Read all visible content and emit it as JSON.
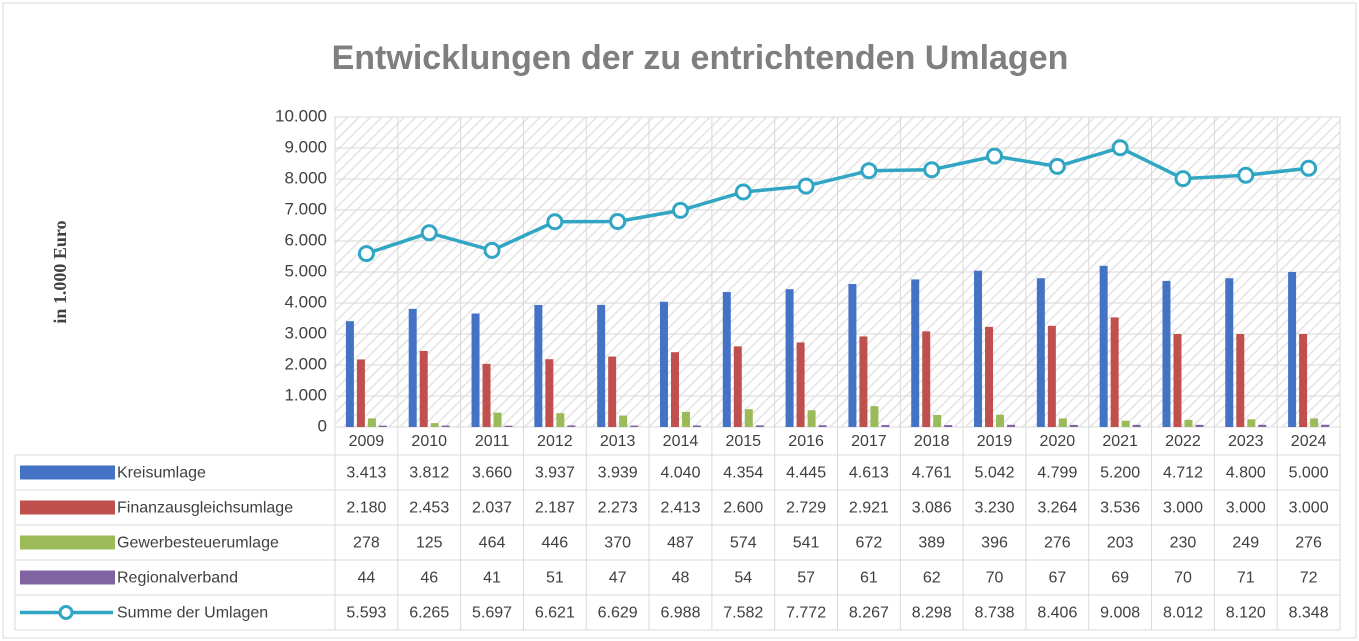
{
  "chart_data": {
    "type": "bar",
    "title": "Entwicklungen der zu entrichtenden Umlagen",
    "y_label": "in 1.000 Euro",
    "categories": [
      "2009",
      "2010",
      "2011",
      "2012",
      "2013",
      "2014",
      "2015",
      "2016",
      "2017",
      "2018",
      "2019",
      "2020",
      "2021",
      "2022",
      "2023",
      "2024"
    ],
    "ylim": [
      0,
      10000
    ],
    "yticks": [
      0,
      {
        "value": 1000,
        "label": "1.000"
      },
      {
        "value": 2000,
        "label": "2.000"
      },
      {
        "value": 3000,
        "label": "3.000"
      },
      {
        "value": 4000,
        "label": "4.000"
      },
      {
        "value": 5000,
        "label": "5.000"
      },
      {
        "value": 6000,
        "label": "6.000"
      },
      {
        "value": 7000,
        "label": "7.000"
      },
      {
        "value": 8000,
        "label": "8.000"
      },
      {
        "value": 9000,
        "label": "9.000"
      },
      {
        "value": 10000,
        "label": "10.000"
      }
    ],
    "grid": true,
    "series": [
      {
        "name": "Kreisumlage",
        "color": "#4472c4",
        "type": "bar",
        "values": [
          3413,
          3812,
          3660,
          3937,
          3939,
          4040,
          4354,
          4445,
          4613,
          4761,
          5042,
          4799,
          5200,
          4712,
          4800,
          5000
        ],
        "value_labels": [
          "3.413",
          "3.812",
          "3.660",
          "3.937",
          "3.939",
          "4.040",
          "4.354",
          "4.445",
          "4.613",
          "4.761",
          "5.042",
          "4.799",
          "5.200",
          "4.712",
          "4.800",
          "5.000"
        ]
      },
      {
        "name": "Finanzausgleichsumlage",
        "color": "#c0504d",
        "type": "bar",
        "values": [
          2180,
          2453,
          2037,
          2187,
          2273,
          2413,
          2600,
          2729,
          2921,
          3086,
          3230,
          3264,
          3536,
          3000,
          3000,
          3000
        ],
        "value_labels": [
          "2.180",
          "2.453",
          "2.037",
          "2.187",
          "2.273",
          "2.413",
          "2.600",
          "2.729",
          "2.921",
          "3.086",
          "3.230",
          "3.264",
          "3.536",
          "3.000",
          "3.000",
          "3.000"
        ]
      },
      {
        "name": "Gewerbesteuerumlage",
        "color": "#9bbb59",
        "type": "bar",
        "values": [
          278,
          125,
          464,
          446,
          370,
          487,
          574,
          541,
          672,
          389,
          396,
          276,
          203,
          230,
          249,
          276
        ]
      },
      {
        "name": "Regionalverband",
        "color": "#8064a2",
        "type": "bar",
        "values": [
          44,
          46,
          41,
          51,
          47,
          48,
          54,
          57,
          61,
          62,
          70,
          67,
          69,
          70,
          71,
          72
        ]
      },
      {
        "name": "Summe der Umlagen",
        "color": "#31a6c4",
        "type": "line",
        "values": [
          5593,
          6265,
          5697,
          6621,
          6629,
          6988,
          7582,
          7772,
          8267,
          8298,
          8738,
          8406,
          9008,
          8012,
          8120,
          8348
        ],
        "value_labels": [
          "5.593",
          "6.265",
          "5.697",
          "6.621",
          "6.629",
          "6.988",
          "7.582",
          "7.772",
          "8.267",
          "8.298",
          "8.738",
          "8.406",
          "9.008",
          "8.012",
          "8.120",
          "8.348"
        ]
      }
    ]
  }
}
